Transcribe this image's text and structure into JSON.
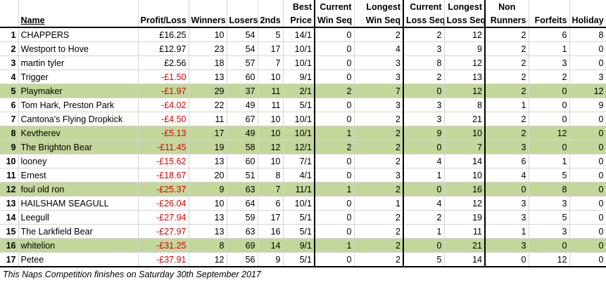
{
  "headers": {
    "name": "Name",
    "profit": "Profit/Loss",
    "winners": "Winners",
    "losers": "Losers",
    "seconds": "2nds",
    "best_price_1": "Best",
    "best_price_2": "Price",
    "cur_win_1": "Current",
    "cur_win_2": "Win Seq",
    "long_win_1": "Longest",
    "long_win_2": "Win Seq",
    "cur_loss_1": "Current",
    "cur_loss_2": "Loss Seq",
    "long_loss_1": "Longest",
    "long_loss_2": "Loss Seq",
    "non_runners_1": "Non",
    "non_runners_2": "Runners",
    "forfeits": "Forfeits",
    "holiday": "Holiday"
  },
  "rows": [
    {
      "idx": "1",
      "name": "CHAPPERS",
      "profit": "£16.25",
      "neg": false,
      "winners": "10",
      "losers": "54",
      "seconds": "5",
      "best": "14/1",
      "cw": "0",
      "lw": "2",
      "cl": "2",
      "ll": "12",
      "nr": "2",
      "ff": "6",
      "hol": "8",
      "hl": false
    },
    {
      "idx": "2",
      "name": "Westport to Hove",
      "profit": "£12.97",
      "neg": false,
      "winners": "23",
      "losers": "54",
      "seconds": "17",
      "best": "10/1",
      "cw": "0",
      "lw": "4",
      "cl": "3",
      "ll": "9",
      "nr": "2",
      "ff": "1",
      "hol": "0",
      "hl": false
    },
    {
      "idx": "3",
      "name": "martin tyler",
      "profit": "£2.56",
      "neg": false,
      "winners": "18",
      "losers": "57",
      "seconds": "7",
      "best": "10/1",
      "cw": "0",
      "lw": "3",
      "cl": "8",
      "ll": "12",
      "nr": "2",
      "ff": "3",
      "hol": "0",
      "hl": false
    },
    {
      "idx": "4",
      "name": "Trigger",
      "profit": "-£1.50",
      "neg": true,
      "winners": "13",
      "losers": "60",
      "seconds": "10",
      "best": "9/1",
      "cw": "0",
      "lw": "3",
      "cl": "2",
      "ll": "13",
      "nr": "2",
      "ff": "2",
      "hol": "3",
      "hl": false
    },
    {
      "idx": "5",
      "name": "Playmaker",
      "profit": "-£1.97",
      "neg": true,
      "winners": "29",
      "losers": "37",
      "seconds": "11",
      "best": "2/1",
      "cw": "2",
      "lw": "7",
      "cl": "0",
      "ll": "12",
      "nr": "2",
      "ff": "0",
      "hol": "12",
      "hl": true
    },
    {
      "idx": "6",
      "name": "Tom Hark, Preston Park",
      "profit": "-£4.02",
      "neg": true,
      "winners": "22",
      "losers": "49",
      "seconds": "11",
      "best": "5/1",
      "cw": "0",
      "lw": "3",
      "cl": "3",
      "ll": "8",
      "nr": "1",
      "ff": "0",
      "hol": "9",
      "hl": false
    },
    {
      "idx": "7",
      "name": "Cantona's Flying Dropkick",
      "profit": "-£4.50",
      "neg": true,
      "winners": "11",
      "losers": "67",
      "seconds": "10",
      "best": "10/1",
      "cw": "0",
      "lw": "2",
      "cl": "3",
      "ll": "21",
      "nr": "2",
      "ff": "0",
      "hol": "0",
      "hl": false
    },
    {
      "idx": "8",
      "name": "Kevtherev",
      "profit": "-£5.13",
      "neg": true,
      "winners": "17",
      "losers": "49",
      "seconds": "10",
      "best": "10/1",
      "cw": "1",
      "lw": "2",
      "cl": "9",
      "ll": "10",
      "nr": "2",
      "ff": "12",
      "hol": "0",
      "hl": true
    },
    {
      "idx": "9",
      "name": "The Brighton Bear",
      "profit": "-£11.45",
      "neg": true,
      "winners": "19",
      "losers": "58",
      "seconds": "12",
      "best": "12/1",
      "cw": "2",
      "lw": "2",
      "cl": "0",
      "ll": "7",
      "nr": "3",
      "ff": "0",
      "hol": "0",
      "hl": true
    },
    {
      "idx": "10",
      "name": "looney",
      "profit": "-£15.62",
      "neg": true,
      "winners": "13",
      "losers": "60",
      "seconds": "10",
      "best": "7/1",
      "cw": "0",
      "lw": "2",
      "cl": "4",
      "ll": "14",
      "nr": "6",
      "ff": "1",
      "hol": "0",
      "hl": false
    },
    {
      "idx": "11",
      "name": "Ernest",
      "profit": "-£18.67",
      "neg": true,
      "winners": "20",
      "losers": "51",
      "seconds": "8",
      "best": "4/1",
      "cw": "0",
      "lw": "3",
      "cl": "1",
      "ll": "10",
      "nr": "4",
      "ff": "5",
      "hol": "0",
      "hl": false
    },
    {
      "idx": "12",
      "name": "foul old ron",
      "profit": "-£25.37",
      "neg": true,
      "winners": "9",
      "losers": "63",
      "seconds": "7",
      "best": "11/1",
      "cw": "1",
      "lw": "2",
      "cl": "0",
      "ll": "16",
      "nr": "0",
      "ff": "8",
      "hol": "0",
      "hl": true
    },
    {
      "idx": "13",
      "name": "HAILSHAM SEAGULL",
      "profit": "-£26.04",
      "neg": true,
      "winners": "10",
      "losers": "64",
      "seconds": "6",
      "best": "10/1",
      "cw": "0",
      "lw": "1",
      "cl": "4",
      "ll": "12",
      "nr": "3",
      "ff": "3",
      "hol": "0",
      "hl": false
    },
    {
      "idx": "14",
      "name": "Leegull",
      "profit": "-£27.94",
      "neg": true,
      "winners": "13",
      "losers": "59",
      "seconds": "17",
      "best": "5/1",
      "cw": "0",
      "lw": "2",
      "cl": "2",
      "ll": "19",
      "nr": "3",
      "ff": "5",
      "hol": "0",
      "hl": false
    },
    {
      "idx": "15",
      "name": "The Larkfield Bear",
      "profit": "-£27.97",
      "neg": true,
      "winners": "13",
      "losers": "63",
      "seconds": "16",
      "best": "5/1",
      "cw": "0",
      "lw": "2",
      "cl": "1",
      "ll": "11",
      "nr": "1",
      "ff": "3",
      "hol": "0",
      "hl": false
    },
    {
      "idx": "16",
      "name": "whitelion",
      "profit": "-£31.25",
      "neg": true,
      "winners": "8",
      "losers": "69",
      "seconds": "14",
      "best": "9/1",
      "cw": "1",
      "lw": "2",
      "cl": "0",
      "ll": "21",
      "nr": "3",
      "ff": "0",
      "hol": "0",
      "hl": true
    },
    {
      "idx": "17",
      "name": "Petee",
      "profit": "-£37.91",
      "neg": true,
      "winners": "12",
      "losers": "56",
      "seconds": "9",
      "best": "5/1",
      "cw": "0",
      "lw": "2",
      "cl": "5",
      "ll": "14",
      "nr": "0",
      "ff": "12",
      "hol": "0",
      "hl": false
    }
  ],
  "footer": "This Naps Competition finishes on Saturday 30th September 2017",
  "colors": {
    "highlight": "#c4d79b",
    "negative": "#e00000"
  }
}
